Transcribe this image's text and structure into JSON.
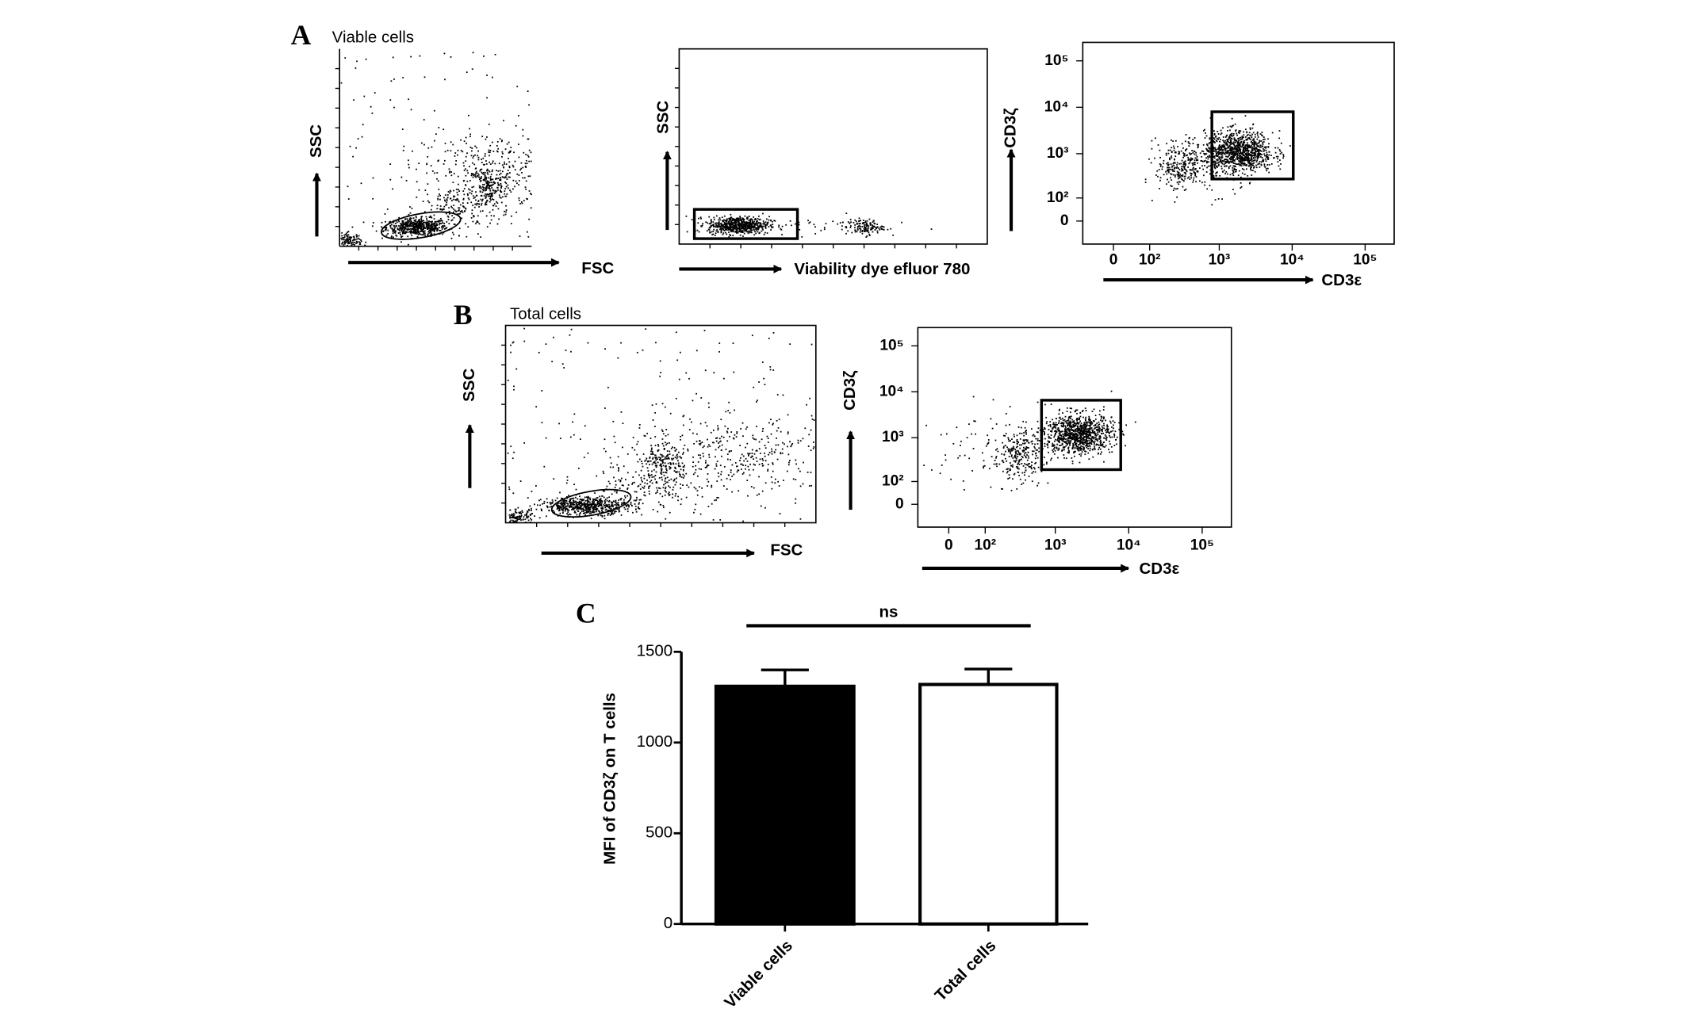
{
  "chart_data": [
    {
      "type": "scatter",
      "panel": "A",
      "title": "Viable cells",
      "x_label": "FSC",
      "y_label": "SSC"
    },
    {
      "type": "scatter",
      "x_label": "Viability dye efluor 780",
      "y_label": "SSC"
    },
    {
      "type": "scatter",
      "x_label": "CD3ε",
      "y_label": "CD3ζ",
      "xscale": "biexponential",
      "yscale": "biexponential",
      "xlim": [
        -80,
        250000
      ],
      "ylim": [
        -100,
        250000
      ],
      "xticks": [
        0,
        {
          "value": 100,
          "label": "10²"
        },
        {
          "value": 1000,
          "label": "10³"
        },
        {
          "value": 10000,
          "label": "10⁴"
        },
        {
          "value": 100000,
          "label": "10⁵"
        }
      ],
      "yticks": [
        0,
        {
          "value": 100,
          "label": "10²"
        },
        {
          "value": 1000,
          "label": "10³"
        },
        {
          "value": 10000,
          "label": "10⁴"
        },
        {
          "value": 100000,
          "label": "10⁵"
        }
      ]
    },
    {
      "type": "scatter",
      "panel": "B",
      "title": "Total cells",
      "x_label": "FSC",
      "y_label": "SSC"
    },
    {
      "type": "scatter",
      "x_label": "CD3ε",
      "y_label": "CD3ζ",
      "xscale": "biexponential",
      "yscale": "biexponential",
      "xlim": [
        -80,
        250000
      ],
      "ylim": [
        -100,
        250000
      ],
      "xticks": [
        0,
        {
          "value": 100,
          "label": "10²"
        },
        {
          "value": 1000,
          "label": "10³"
        },
        {
          "value": 10000,
          "label": "10⁴"
        },
        {
          "value": 100000,
          "label": "10⁵"
        }
      ],
      "yticks": [
        0,
        {
          "value": 100,
          "label": "10²"
        },
        {
          "value": 1000,
          "label": "10³"
        },
        {
          "value": 10000,
          "label": "10⁴"
        },
        {
          "value": 100000,
          "label": "10⁵"
        }
      ]
    },
    {
      "type": "bar",
      "panel": "C",
      "y_label": "MFI of CD3ζ on T cells",
      "annotation": "ns",
      "categories": [
        "Viable cells",
        "Total cells"
      ],
      "values": [
        1310,
        1320
      ],
      "errors": [
        90,
        85
      ],
      "colors": [
        "#000000",
        "#ffffff"
      ],
      "ylim": [
        0,
        1500
      ],
      "yticks": [
        0,
        500,
        1000,
        1500
      ]
    }
  ]
}
